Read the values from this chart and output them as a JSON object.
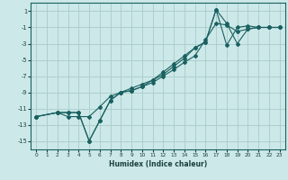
{
  "xlabel": "Humidex (Indice chaleur)",
  "bg_color": "#cce8e8",
  "grid_color": "#aacccc",
  "line_color": "#1a6060",
  "lines": [
    {
      "x": [
        0,
        2,
        3,
        4,
        5,
        6,
        7,
        8,
        9,
        10,
        11,
        12,
        13,
        14,
        15,
        16,
        17,
        18,
        19,
        20,
        21,
        22,
        23
      ],
      "y": [
        -12,
        -11.5,
        -11.5,
        -11.5,
        -15,
        -12.5,
        -10,
        -9,
        -8.8,
        -8.3,
        -7.8,
        -7,
        -6.2,
        -5.3,
        -4.5,
        -2.5,
        -0.5,
        -0.7,
        -1.5,
        -1.2,
        -1.0,
        -1.0,
        -1.0
      ]
    },
    {
      "x": [
        0,
        2,
        3,
        4,
        5,
        6,
        7,
        8,
        9,
        10,
        11,
        12,
        13,
        14,
        15,
        16,
        17,
        18,
        19,
        20,
        21,
        22,
        23
      ],
      "y": [
        -12,
        -11.5,
        -12,
        -12,
        -12,
        -10.8,
        -9.5,
        -9,
        -8.5,
        -8,
        -7.5,
        -6.8,
        -5.8,
        -4.8,
        -3.5,
        -2.8,
        1.2,
        -0.5,
        -3,
        -1.2,
        -1.0,
        -1.0,
        -1.0
      ]
    },
    {
      "x": [
        0,
        2,
        3,
        4,
        5,
        6,
        7,
        8,
        9,
        10,
        11,
        12,
        13,
        14,
        15,
        16,
        17,
        18,
        19,
        20,
        21,
        22,
        23
      ],
      "y": [
        -12,
        -11.5,
        -11.5,
        -11.5,
        -15,
        -12.5,
        -10,
        -9,
        -8.8,
        -8.3,
        -7.5,
        -6.5,
        -5.5,
        -4.5,
        -3.5,
        -2.8,
        1.2,
        -3.2,
        -1.0,
        -0.8,
        -1.0,
        -1.0,
        -1.0
      ]
    }
  ],
  "ylim": [
    -16,
    2
  ],
  "xlim": [
    -0.5,
    23.5
  ],
  "yticks": [
    1,
    -1,
    -3,
    -5,
    -7,
    -9,
    -11,
    -13,
    -15
  ],
  "xticks": [
    0,
    1,
    2,
    3,
    4,
    5,
    6,
    7,
    8,
    9,
    10,
    11,
    12,
    13,
    14,
    15,
    16,
    17,
    18,
    19,
    20,
    21,
    22,
    23
  ]
}
